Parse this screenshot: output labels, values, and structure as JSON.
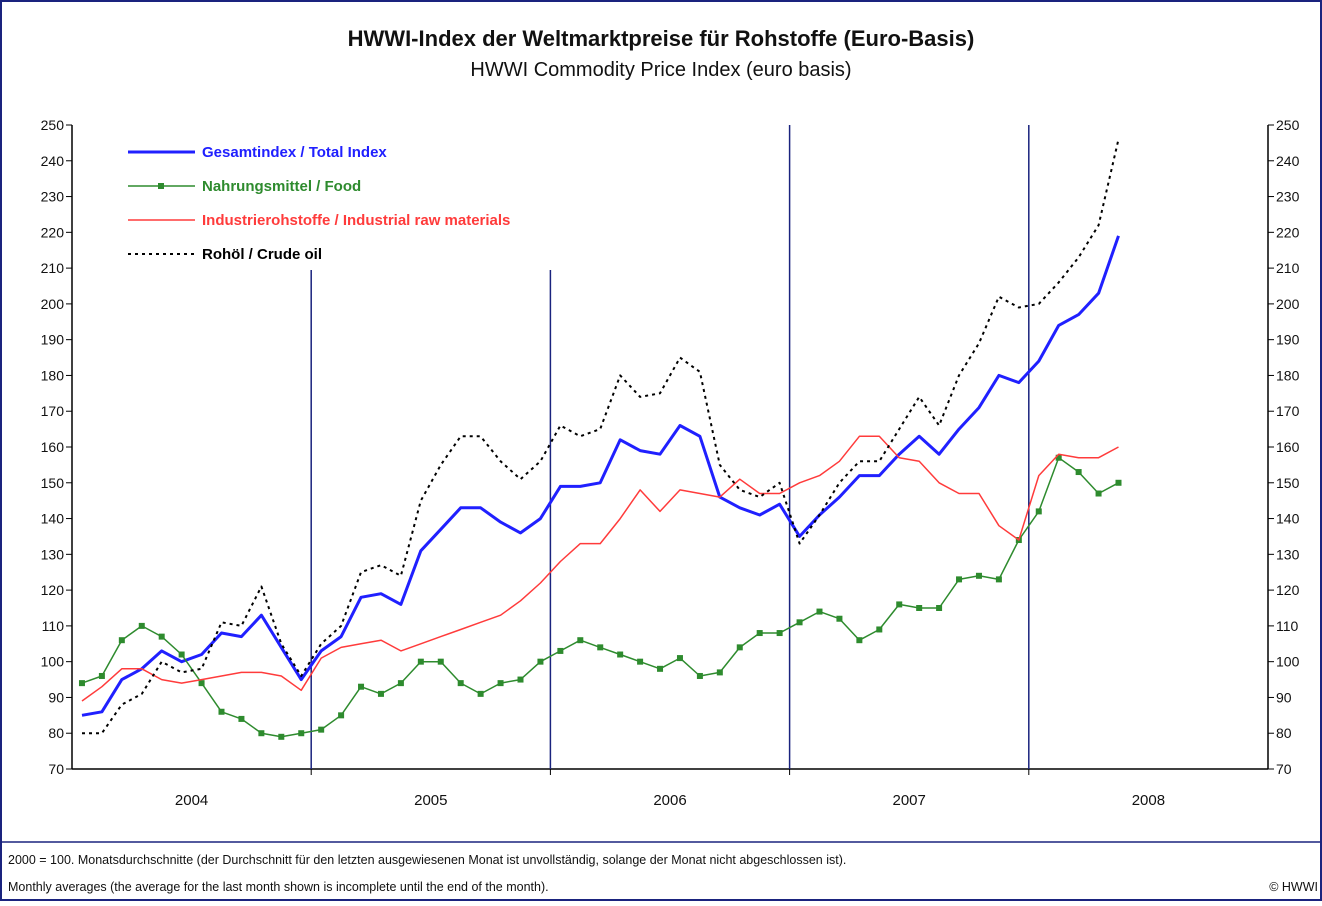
{
  "chart_data": {
    "type": "line",
    "title": "HWWI-Index der Weltmarktpreise für Rohstoffe  (Euro-Basis)",
    "subtitle": "HWWI Commodity Price Index  (euro basis)",
    "categories": [
      "2004",
      "2005",
      "2006",
      "2007",
      "2008"
    ],
    "x": [
      "2004-01",
      "2004-02",
      "2004-03",
      "2004-04",
      "2004-05",
      "2004-06",
      "2004-07",
      "2004-08",
      "2004-09",
      "2004-10",
      "2004-11",
      "2004-12",
      "2005-01",
      "2005-02",
      "2005-03",
      "2005-04",
      "2005-05",
      "2005-06",
      "2005-07",
      "2005-08",
      "2005-09",
      "2005-10",
      "2005-11",
      "2005-12",
      "2006-01",
      "2006-02",
      "2006-03",
      "2006-04",
      "2006-05",
      "2006-06",
      "2006-07",
      "2006-08",
      "2006-09",
      "2006-10",
      "2006-11",
      "2006-12",
      "2007-01",
      "2007-02",
      "2007-03",
      "2007-04",
      "2007-05",
      "2007-06",
      "2007-07",
      "2007-08",
      "2007-09",
      "2007-10",
      "2007-11",
      "2007-12",
      "2008-01",
      "2008-02",
      "2008-03",
      "2008-04",
      "2008-05"
    ],
    "series": [
      {
        "name": "Gesamtindex / Total Index",
        "color": "#2020ff",
        "style": "solid-thick",
        "values": [
          85,
          86,
          95,
          98,
          103,
          100,
          102,
          108,
          107,
          113,
          104,
          95,
          103,
          107,
          118,
          119,
          116,
          131,
          137,
          143,
          143,
          139,
          136,
          140,
          149,
          149,
          150,
          162,
          159,
          158,
          166,
          163,
          146,
          143,
          141,
          144,
          135,
          141,
          146,
          152,
          152,
          158,
          163,
          158,
          165,
          171,
          180,
          178,
          184,
          194,
          197,
          203,
          219
        ]
      },
      {
        "name": "Nahrungsmittel / Food",
        "color": "#2e8b2e",
        "style": "markers",
        "values": [
          94,
          96,
          106,
          110,
          107,
          102,
          94,
          86,
          84,
          80,
          79,
          80,
          81,
          85,
          93,
          91,
          94,
          100,
          100,
          94,
          91,
          94,
          95,
          100,
          103,
          106,
          104,
          102,
          100,
          98,
          101,
          96,
          97,
          104,
          108,
          108,
          111,
          114,
          112,
          106,
          109,
          116,
          115,
          115,
          123,
          124,
          123,
          134,
          142,
          157,
          153,
          147,
          150
        ]
      },
      {
        "name": "Industrierohstoffe / Industrial raw materials",
        "color": "#ff3b3b",
        "style": "solid",
        "values": [
          89,
          93,
          98,
          98,
          95,
          94,
          95,
          96,
          97,
          97,
          96,
          92,
          101,
          104,
          105,
          106,
          103,
          105,
          107,
          109,
          111,
          113,
          117,
          122,
          128,
          133,
          133,
          140,
          148,
          142,
          148,
          147,
          146,
          151,
          147,
          147,
          150,
          152,
          156,
          163,
          163,
          157,
          156,
          150,
          147,
          147,
          138,
          134,
          152,
          158,
          157,
          157,
          160
        ]
      },
      {
        "name": "Rohöl / Crude oil",
        "color": "#000000",
        "style": "dotted",
        "values": [
          80,
          80,
          88,
          91,
          100,
          97,
          98,
          111,
          110,
          121,
          105,
          96,
          105,
          110,
          125,
          127,
          124,
          145,
          155,
          163,
          163,
          156,
          151,
          156,
          166,
          163,
          165,
          180,
          174,
          175,
          185,
          181,
          155,
          148,
          146,
          150,
          133,
          141,
          150,
          156,
          156,
          165,
          174,
          166,
          180,
          189,
          202,
          199,
          200,
          206,
          213,
          222,
          246
        ]
      }
    ],
    "ylim": [
      70,
      250
    ],
    "yticks": [
      70,
      80,
      90,
      100,
      110,
      120,
      130,
      140,
      150,
      160,
      170,
      180,
      190,
      200,
      210,
      220,
      230,
      240,
      250
    ],
    "legend": "upper left",
    "footnote": [
      "2000 = 100. Monatsdurchschnitte (der Durchschnitt für den letzten ausgewiesenen Monat ist unvollständig, solange der Monat nicht abgeschlossen ist).",
      "Monthly averages (the average for the last month shown is incomplete until the end of the month)."
    ],
    "copyright": "© HWWI"
  }
}
